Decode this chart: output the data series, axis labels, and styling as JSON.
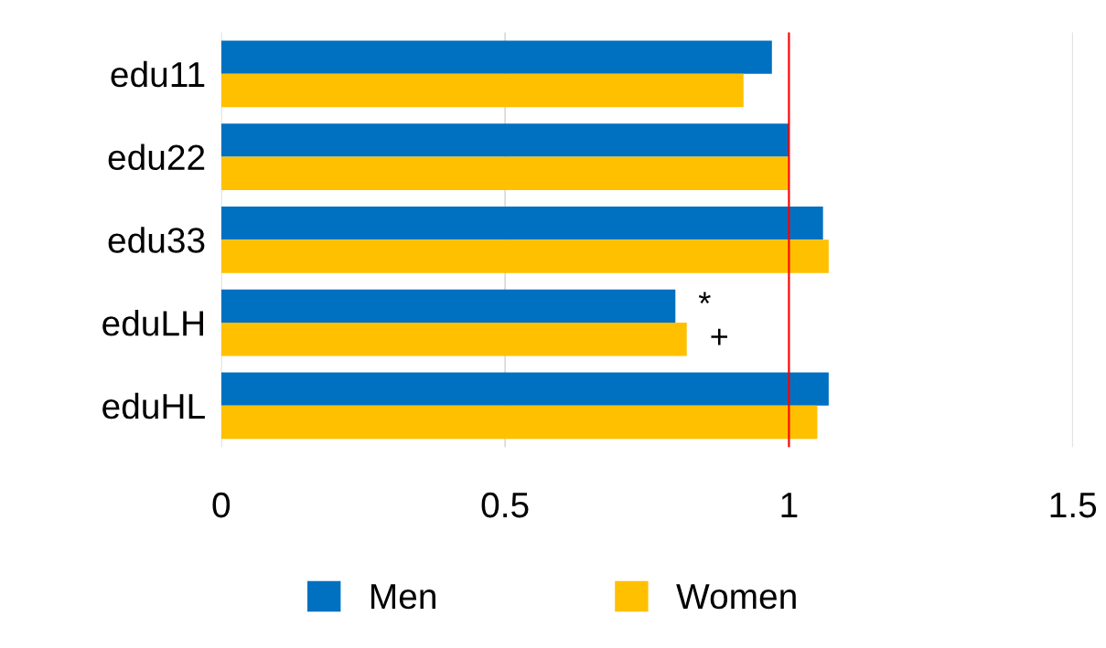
{
  "chart_data": {
    "type": "bar",
    "orientation": "horizontal",
    "categories": [
      "edu11",
      "edu22",
      "edu33",
      "eduLH",
      "eduHL"
    ],
    "series": [
      {
        "name": "Men",
        "color": "#0070c0",
        "values": [
          0.97,
          1.0,
          1.06,
          0.8,
          1.07
        ]
      },
      {
        "name": "Women",
        "color": "#ffc000",
        "values": [
          0.92,
          1.0,
          1.07,
          0.82,
          1.05
        ]
      }
    ],
    "xlim": [
      0,
      1.5
    ],
    "xticks": [
      0,
      0.5,
      1,
      1.5
    ],
    "grid": "x",
    "legend": "bottom",
    "ref_lines": [
      {
        "axis": "x",
        "value": 1,
        "color": "#ff0000"
      }
    ],
    "annotations": [
      {
        "text": "*",
        "x": 0.8,
        "y": "eduLH"
      },
      {
        "text": "+",
        "x": 0.82,
        "y": "eduLH"
      }
    ]
  }
}
